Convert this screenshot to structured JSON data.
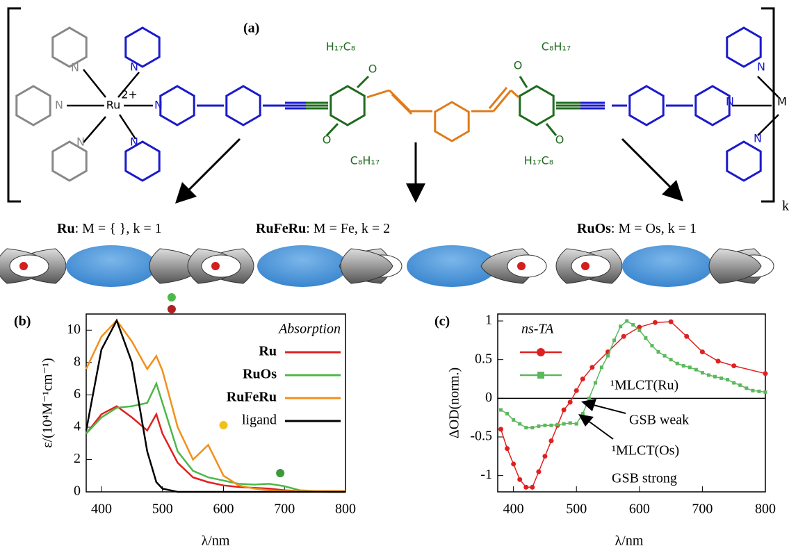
{
  "panel_a": {
    "label": "(a)",
    "bracket_sub": "k",
    "atoms": [
      "N",
      "N",
      "N",
      "Ru",
      "2+",
      "N",
      "N",
      "N",
      "H₁₇C₈",
      "O",
      "O",
      "C₈H₁₇",
      "O",
      "C₈H₁₇",
      "O",
      "H₁₇C₈",
      "N",
      "N",
      "M",
      "N"
    ],
    "compounds": [
      {
        "name": "Ru",
        "formula": ": M = { }, k = 1"
      },
      {
        "name": "RuFeRu",
        "formula": ": M = Fe, k = 2"
      },
      {
        "name": "RuOs",
        "formula": ": M = Os, k = 1"
      }
    ]
  },
  "chart_data": [
    {
      "type": "line",
      "panel": "(b)",
      "xlabel": "λ/nm",
      "ylabel": "ε/(10⁴M⁻¹cm⁻¹)",
      "legend_title": "Absorption",
      "legend": "upper right",
      "x": [
        375,
        400,
        425,
        450,
        475,
        490,
        500,
        525,
        550,
        575,
        600,
        625,
        650,
        675,
        700,
        725,
        750,
        775,
        800
      ],
      "xlim": [
        375,
        800
      ],
      "xticks": [
        400,
        500,
        600,
        700,
        800
      ],
      "ylim": [
        0,
        11
      ],
      "yticks": [
        0,
        2,
        4,
        6,
        8,
        10
      ],
      "series": [
        {
          "name": "Ru",
          "color": "#e02020",
          "bold": true,
          "values": [
            3.6,
            4.8,
            5.3,
            4.6,
            3.8,
            4.8,
            3.6,
            1.8,
            0.9,
            0.6,
            0.4,
            0.3,
            0.25,
            0.2,
            0.1,
            0.05,
            0.02,
            0,
            0
          ]
        },
        {
          "name": "RuOs",
          "color": "#4cb848",
          "bold": true,
          "values": [
            3.6,
            4.6,
            5.2,
            5.3,
            5.5,
            6.7,
            5.5,
            2.5,
            1.3,
            0.9,
            0.7,
            0.5,
            0.45,
            0.5,
            0.35,
            0.1,
            0.05,
            0,
            0
          ]
        },
        {
          "name": "RuFeRu",
          "color": "#f39019",
          "bold": true,
          "values": [
            7.6,
            9.6,
            10.6,
            9.3,
            7.6,
            8.4,
            7.5,
            4.0,
            2.0,
            2.9,
            1.0,
            0.4,
            0.2,
            0.1,
            0.05,
            0.05,
            0.05,
            0.05,
            0.05
          ]
        },
        {
          "name": "ligand",
          "color": "#000000",
          "bold": false,
          "values": [
            3.8,
            8.8,
            10.6,
            8.0,
            2.5,
            0.6,
            0.2,
            0,
            0,
            0,
            0,
            0,
            0,
            0,
            0,
            0,
            0,
            0,
            0
          ]
        }
      ]
    },
    {
      "type": "line",
      "panel": "(c)",
      "xlabel": "λ/nm",
      "ylabel": "ΔOD(norm.)",
      "legend_title": "ns-TA",
      "legend": "upper left",
      "zero_line": true,
      "xlim": [
        375,
        800
      ],
      "xticks": [
        400,
        500,
        600,
        700,
        800
      ],
      "ylim": [
        -1.21,
        1.09
      ],
      "yticks": [
        -1,
        -0.5,
        0,
        0.5,
        1
      ],
      "annotations": [
        "¹MLCT(Ru)",
        "GSB weak",
        "¹MLCT(Os)",
        "GSB strong"
      ],
      "series": [
        {
          "color": "#e02020",
          "marker": "circle",
          "x": [
            380,
            390,
            400,
            410,
            420,
            430,
            440,
            450,
            460,
            470,
            480,
            490,
            500,
            510,
            525,
            550,
            575,
            600,
            625,
            650,
            675,
            700,
            725,
            750,
            800
          ],
          "values": [
            -0.4,
            -0.65,
            -0.85,
            -1.05,
            -1.15,
            -1.15,
            -0.95,
            -0.75,
            -0.55,
            -0.35,
            -0.15,
            -0.05,
            0.1,
            0.25,
            0.4,
            0.6,
            0.8,
            0.92,
            0.98,
            0.99,
            0.8,
            0.6,
            0.48,
            0.42,
            0.32
          ]
        },
        {
          "color": "#5cb85c",
          "marker": "square",
          "x": [
            380,
            390,
            400,
            410,
            420,
            430,
            440,
            450,
            460,
            470,
            480,
            490,
            500,
            510,
            520,
            530,
            540,
            550,
            560,
            570,
            580,
            590,
            600,
            610,
            620,
            630,
            640,
            650,
            660,
            670,
            680,
            690,
            700,
            710,
            720,
            730,
            740,
            750,
            760,
            770,
            780,
            790,
            800
          ],
          "values": [
            -0.15,
            -0.2,
            -0.28,
            -0.33,
            -0.38,
            -0.38,
            -0.36,
            -0.35,
            -0.35,
            -0.34,
            -0.33,
            -0.32,
            -0.33,
            -0.2,
            0,
            0.2,
            0.4,
            0.55,
            0.75,
            0.93,
            1,
            0.95,
            0.88,
            0.78,
            0.68,
            0.6,
            0.55,
            0.5,
            0.45,
            0.42,
            0.4,
            0.37,
            0.33,
            0.3,
            0.28,
            0.26,
            0.24,
            0.2,
            0.17,
            0.13,
            0.1,
            0.09,
            0.08
          ]
        }
      ]
    }
  ]
}
